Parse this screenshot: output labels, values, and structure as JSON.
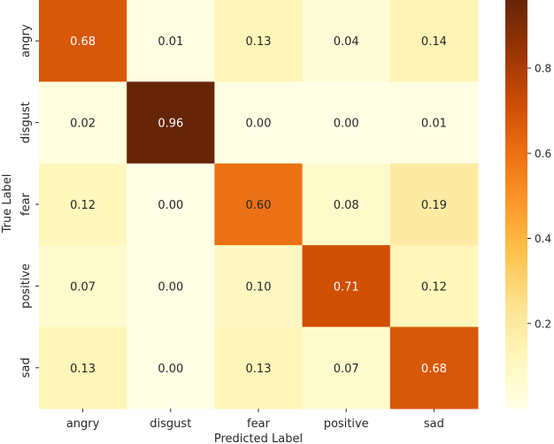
{
  "chart_data": {
    "type": "heatmap",
    "title": "",
    "xlabel": "Predicted Label",
    "ylabel": "True Label",
    "x_categories": [
      "angry",
      "disgust",
      "fear",
      "positive",
      "sad"
    ],
    "y_categories": [
      "angry",
      "disgust",
      "fear",
      "positive",
      "sad"
    ],
    "values": [
      [
        0.68,
        0.01,
        0.13,
        0.04,
        0.14
      ],
      [
        0.02,
        0.96,
        0.0,
        0.0,
        0.01
      ],
      [
        0.12,
        0.0,
        0.6,
        0.08,
        0.19
      ],
      [
        0.07,
        0.0,
        0.1,
        0.71,
        0.12
      ],
      [
        0.13,
        0.0,
        0.13,
        0.07,
        0.68
      ]
    ],
    "value_format": "0.00",
    "colormap": "YlOrBr",
    "colormap_stops": [
      "#ffffe5",
      "#fff7bc",
      "#fee391",
      "#fec44f",
      "#fe9929",
      "#ec7014",
      "#cc4c02",
      "#993404",
      "#662506"
    ],
    "vmin": 0.0,
    "vmax": 0.96,
    "colorbar_ticks": [
      0.2,
      0.4,
      0.6,
      0.8
    ],
    "colorbar_tick_labels": [
      "0.2",
      "0.4",
      "0.6",
      "0.8"
    ],
    "annotation_dark_text": "#262626",
    "annotation_light_text": "#ffffff"
  }
}
